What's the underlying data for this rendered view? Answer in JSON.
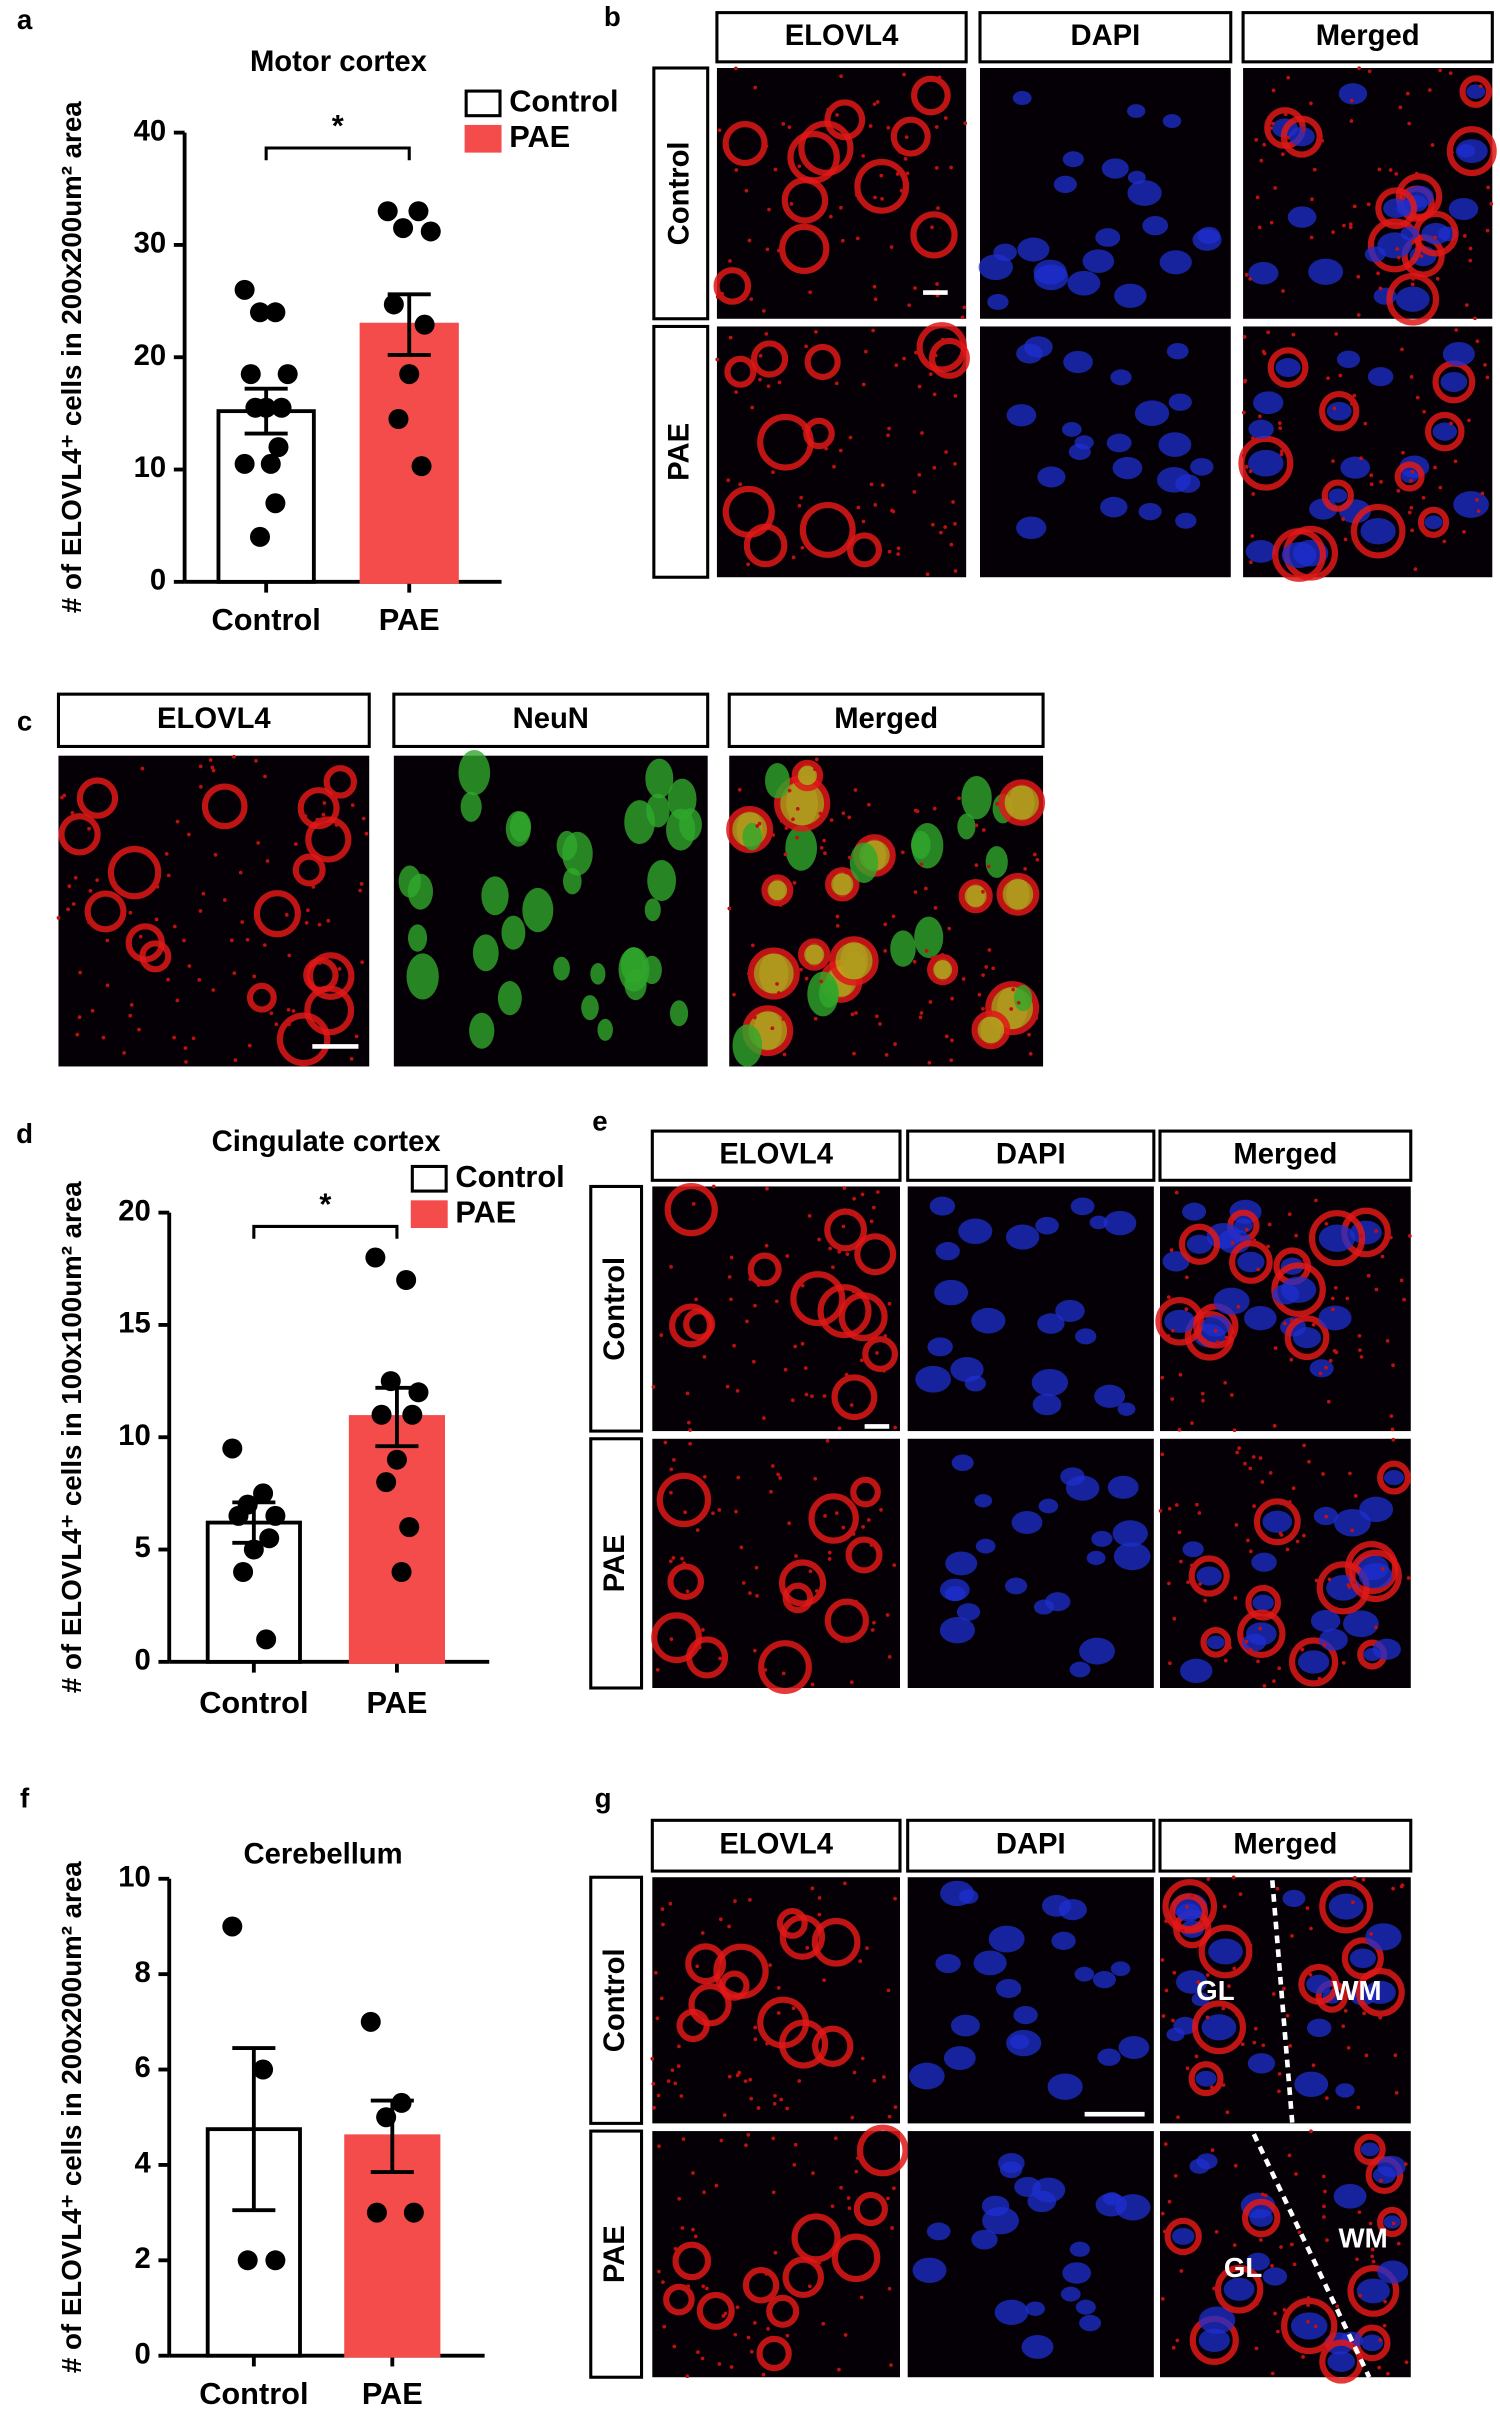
{
  "panel_labels": [
    "a",
    "b",
    "c",
    "d",
    "e",
    "f",
    "g"
  ],
  "chart_data": [
    {
      "type": "bar",
      "title": "Motor cortex",
      "y_label": "# of ELOVL4⁺ cells in 200x200um² area",
      "categories": [
        "Control",
        "PAE"
      ],
      "values": [
        15.2,
        22.9
      ],
      "errors": [
        2.0,
        2.7
      ],
      "colors": [
        "#ffffff",
        "#f44b4b"
      ],
      "points": [
        [
          26,
          24,
          24,
          18.5,
          18.5,
          15.5,
          15.5,
          15.5,
          12,
          10.5,
          10.5,
          7,
          4
        ],
        [
          33,
          33,
          31.5,
          31.2,
          24.7,
          22.9,
          18.5,
          14.5,
          10.3
        ]
      ],
      "ylim": [
        0,
        40
      ],
      "yticks": [
        0,
        10,
        20,
        30,
        40
      ],
      "significance": "*",
      "legend": true
    },
    {
      "type": "bar",
      "title": "Cingulate cortex",
      "y_label": "# of ELOVL4⁺ cells in 100x100um² area",
      "categories": [
        "Control",
        "PAE"
      ],
      "values": [
        6.2,
        10.9
      ],
      "errors": [
        0.9,
        1.3
      ],
      "colors": [
        "#ffffff",
        "#f44b4b"
      ],
      "points": [
        [
          9.5,
          7.5,
          7,
          6.5,
          6.5,
          5.5,
          5,
          4,
          1
        ],
        [
          18,
          17,
          12.5,
          12,
          11,
          11,
          9,
          8,
          6,
          4
        ]
      ],
      "ylim": [
        0,
        20
      ],
      "yticks": [
        0,
        5,
        10,
        15,
        20
      ],
      "significance": "*",
      "legend": true
    },
    {
      "type": "bar",
      "title": "Cerebellum",
      "y_label": "# of ELOVL4⁺ cells in 200x200um² area",
      "categories": [
        "Control",
        "PAE"
      ],
      "values": [
        4.75,
        4.6
      ],
      "errors": [
        1.7,
        0.75
      ],
      "colors": [
        "#ffffff",
        "#f44b4b"
      ],
      "points": [
        [
          9,
          6,
          2,
          2
        ],
        [
          7,
          5.3,
          5,
          3,
          3
        ]
      ],
      "ylim": [
        0,
        10
      ],
      "yticks": [
        0,
        2,
        4,
        6,
        8,
        10
      ],
      "legend": false
    }
  ],
  "images": [
    {
      "columns": [
        "ELOVL4",
        "DAPI",
        "Merged"
      ],
      "rows": [
        "Control",
        "PAE"
      ]
    },
    {
      "columns": [
        "ELOVL4",
        "NeuN",
        "Merged"
      ]
    },
    {
      "columns": [
        "ELOVL4",
        "DAPI",
        "Merged"
      ],
      "rows": [
        "Control",
        "PAE"
      ]
    },
    {
      "columns": [
        "ELOVL4",
        "DAPI",
        "Merged"
      ],
      "rows": [
        "Control",
        "PAE"
      ],
      "annotations": [
        "GL",
        "WM",
        "GL",
        "WM"
      ]
    }
  ]
}
